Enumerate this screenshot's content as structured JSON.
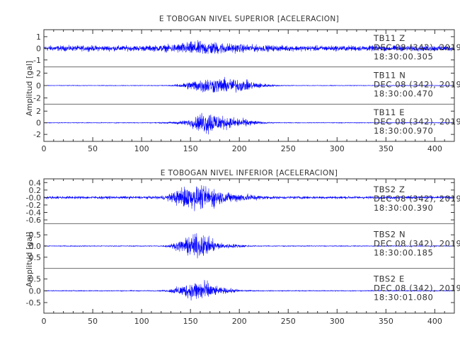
{
  "chart_data": [
    {
      "type": "line",
      "title": "E TOBOGAN NIVEL SUPERIOR [ACELERACION]",
      "ylabel": "Amplitud [gal]",
      "xlim": [
        0,
        420
      ],
      "x_ticks": [
        "0",
        "50",
        "100",
        "150",
        "200",
        "250",
        "300",
        "350",
        "400"
      ],
      "traces": [
        {
          "station": "TB11",
          "component": "Z",
          "label_line1": "TB11   Z",
          "label_line2": "DEC 08 (342), 2019",
          "label_line3": "18:30:00.305",
          "ylim": [
            -1.6,
            1.6
          ],
          "y_ticks": [
            1,
            0,
            -1
          ],
          "y_tick_labels": [
            "1",
            "0",
            "-1"
          ],
          "color": "#0000ff"
        },
        {
          "station": "TB11",
          "component": "N",
          "label_line1": "TB11   N",
          "label_line2": "DEC 08 (342), 2019",
          "label_line3": "18:30:00.470",
          "ylim": [
            -3.0,
            3.0
          ],
          "y_ticks": [
            2,
            0,
            -2
          ],
          "y_tick_labels": [
            "2",
            "0",
            "-2"
          ],
          "color": "#0000ff"
        },
        {
          "station": "TB11",
          "component": "E",
          "label_line1": "TB11   E",
          "label_line2": "DEC 08 (342), 2019",
          "label_line3": "18:30:00.970",
          "ylim": [
            -3.2,
            3.2
          ],
          "y_ticks": [
            2,
            0,
            -2
          ],
          "y_tick_labels": [
            "2",
            "0",
            "-2"
          ],
          "color": "#0000ff"
        }
      ]
    },
    {
      "type": "line",
      "title": "E TOBOGAN NIVEL INFERIOR [ACELERACION]",
      "ylabel": "Amplitud [gal]",
      "xlim": [
        0,
        420
      ],
      "x_ticks": [
        "0",
        "50",
        "100",
        "150",
        "200",
        "250",
        "300",
        "350",
        "400"
      ],
      "traces": [
        {
          "station": "TBS2",
          "component": "Z",
          "label_line1": "TBS2   Z",
          "label_line2": "DEC 08 (342), 2019",
          "label_line3": "18:30:00.390",
          "ylim": [
            -0.7,
            0.5
          ],
          "y_ticks": [
            0.4,
            0.2,
            0.0,
            -0.2,
            -0.4,
            -0.6
          ],
          "y_tick_labels": [
            "0.4",
            "0.2",
            "-0.0",
            "-0.2",
            "-0.4",
            "-0.6"
          ],
          "color": "#0000ff"
        },
        {
          "station": "TBS2",
          "component": "N",
          "label_line1": "TBS2   N",
          "label_line2": "DEC 08 (342), 2019",
          "label_line3": "18:30:00.185",
          "ylim": [
            -1.0,
            1.0
          ],
          "y_ticks": [
            0.5,
            0.0,
            -0.5
          ],
          "y_tick_labels": [
            "0.5",
            "0.0",
            "-0.5"
          ],
          "color": "#0000ff"
        },
        {
          "station": "TBS2",
          "component": "E",
          "label_line1": "TBS2   E",
          "label_line2": "DEC 08 (342), 2019",
          "label_line3": "18:30:01.080",
          "ylim": [
            -0.95,
            0.95
          ],
          "y_ticks": [
            0.5,
            0.0,
            -0.5
          ],
          "y_tick_labels": [
            "0.5",
            "0.0",
            "-0.5"
          ],
          "color": "#0000ff"
        }
      ]
    }
  ]
}
